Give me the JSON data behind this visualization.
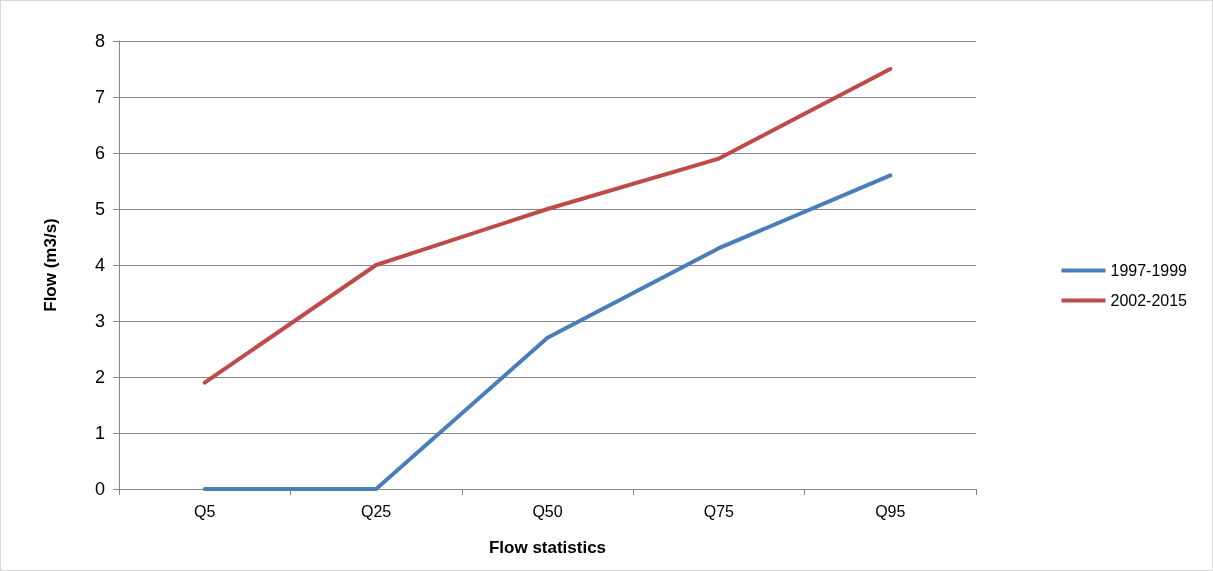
{
  "chart_data": {
    "type": "line",
    "xlabel": "Flow statistics",
    "ylabel": "Flow (m3/s)",
    "categories": [
      "Q5",
      "Q25",
      "Q50",
      "Q75",
      "Q95"
    ],
    "series": [
      {
        "name": "1997-1999",
        "color": "#4a7ebb",
        "values": [
          0,
          0,
          2.7,
          4.3,
          5.6
        ]
      },
      {
        "name": "2002-2015",
        "color": "#be4b48",
        "values": [
          1.9,
          4.0,
          5.0,
          5.9,
          7.5
        ]
      }
    ],
    "ylim": [
      0,
      8
    ],
    "yticks": [
      0,
      1,
      2,
      3,
      4,
      5,
      6,
      7,
      8
    ],
    "grid": "y",
    "legend": "right",
    "marker": "none",
    "line_style": "solid"
  }
}
